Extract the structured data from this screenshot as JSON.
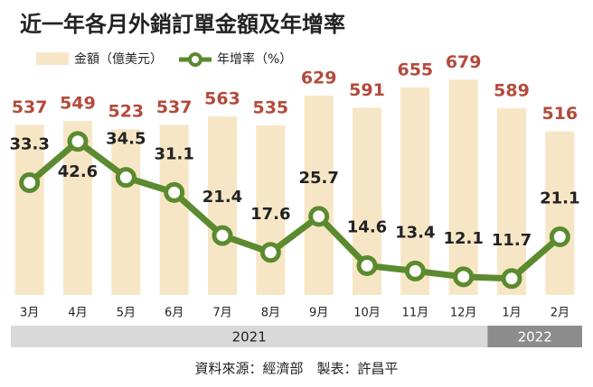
{
  "chart_data": {
    "type": "bar-line",
    "title": "近一年各月外銷訂單金額及年增率",
    "categories": [
      "3月",
      "4月",
      "5月",
      "6月",
      "7月",
      "8月",
      "9月",
      "10月",
      "11月",
      "12月",
      "1月",
      "2月"
    ],
    "series": [
      {
        "name": "金額（億美元）",
        "type": "bar",
        "color": "#f7e6c6",
        "label_color": "#b34a3c",
        "values": [
          537,
          549,
          523,
          537,
          563,
          535,
          629,
          591,
          655,
          679,
          589,
          516
        ]
      },
      {
        "name": "年增率（%）",
        "type": "line",
        "axis": "y2",
        "color": "#5b8a2f",
        "label_color": "#222222",
        "values": [
          33.3,
          42.6,
          34.5,
          31.1,
          21.4,
          17.6,
          25.7,
          14.6,
          13.4,
          12.1,
          11.7,
          21.1
        ]
      }
    ],
    "ylim": [
      0,
      700
    ],
    "y2lim": [
      8,
      58
    ],
    "x_groups": [
      {
        "label": "2021",
        "count": 10,
        "color": "#d9d9d9"
      },
      {
        "label": "2022",
        "count": 2,
        "color": "#8c8c8c"
      }
    ],
    "source": "資料來源：經濟部　製表：許昌平"
  }
}
